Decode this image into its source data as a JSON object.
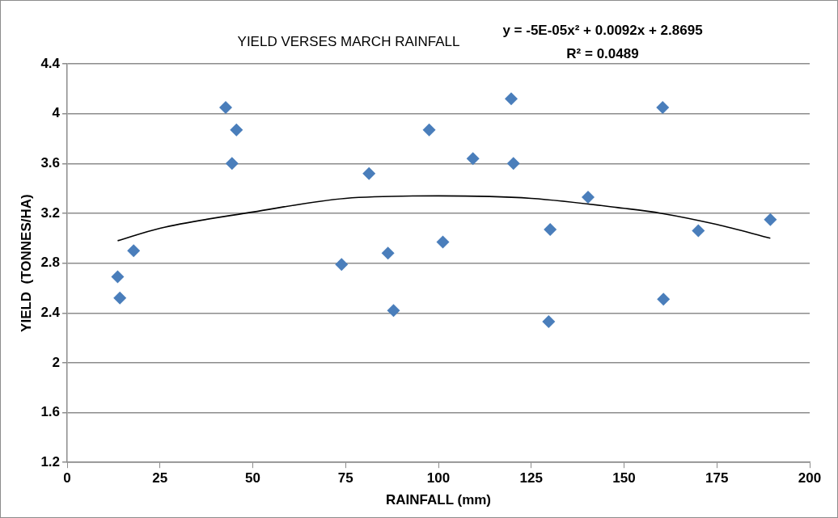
{
  "chart_data": {
    "type": "scatter",
    "title": "YIELD VERSES MARCH RAINFALL",
    "xlabel": "RAINFALL (mm)",
    "ylabel": "YIELD  (TONNES/HA)",
    "annotations": [
      "y = -5E-05x² + 0.0092x + 2.8695",
      "R² = 0.0489"
    ],
    "series": [
      {
        "color": "#4a7ebb",
        "marker": "diamond",
        "x": [
          42.7,
          45.6,
          44.4,
          17.9,
          13.6,
          14.2,
          73.9,
          81.3,
          86.4,
          87.9,
          97.5,
          101.2,
          109.3,
          119.6,
          120.2,
          130.1,
          129.7,
          140.3,
          160.4,
          160.6,
          170.0,
          189.4
        ],
        "values": [
          4.05,
          3.87,
          3.6,
          2.9,
          2.69,
          2.52,
          2.79,
          3.52,
          2.88,
          2.42,
          3.87,
          2.97,
          3.64,
          4.12,
          3.6,
          3.07,
          2.33,
          3.33,
          4.05,
          2.51,
          3.06,
          3.15
        ]
      },
      {
        "type": "line",
        "color": "#000000",
        "marker": "none",
        "x": [
          13.6,
          25,
          50,
          75,
          100,
          125,
          150,
          160,
          175,
          189.4
        ],
        "values": [
          2.98,
          3.08,
          3.21,
          3.32,
          3.34,
          3.32,
          3.24,
          3.2,
          3.11,
          3.0
        ]
      }
    ],
    "xlim": [
      0,
      200
    ],
    "xticks": [
      0,
      25,
      50,
      75,
      100,
      125,
      150,
      175,
      200
    ],
    "ylim": [
      1.2,
      4.4
    ],
    "yticks": [
      1.2,
      1.6,
      2,
      2.4,
      2.8,
      3.2,
      3.6,
      4,
      4.4
    ],
    "grid": "y",
    "legend": false
  }
}
